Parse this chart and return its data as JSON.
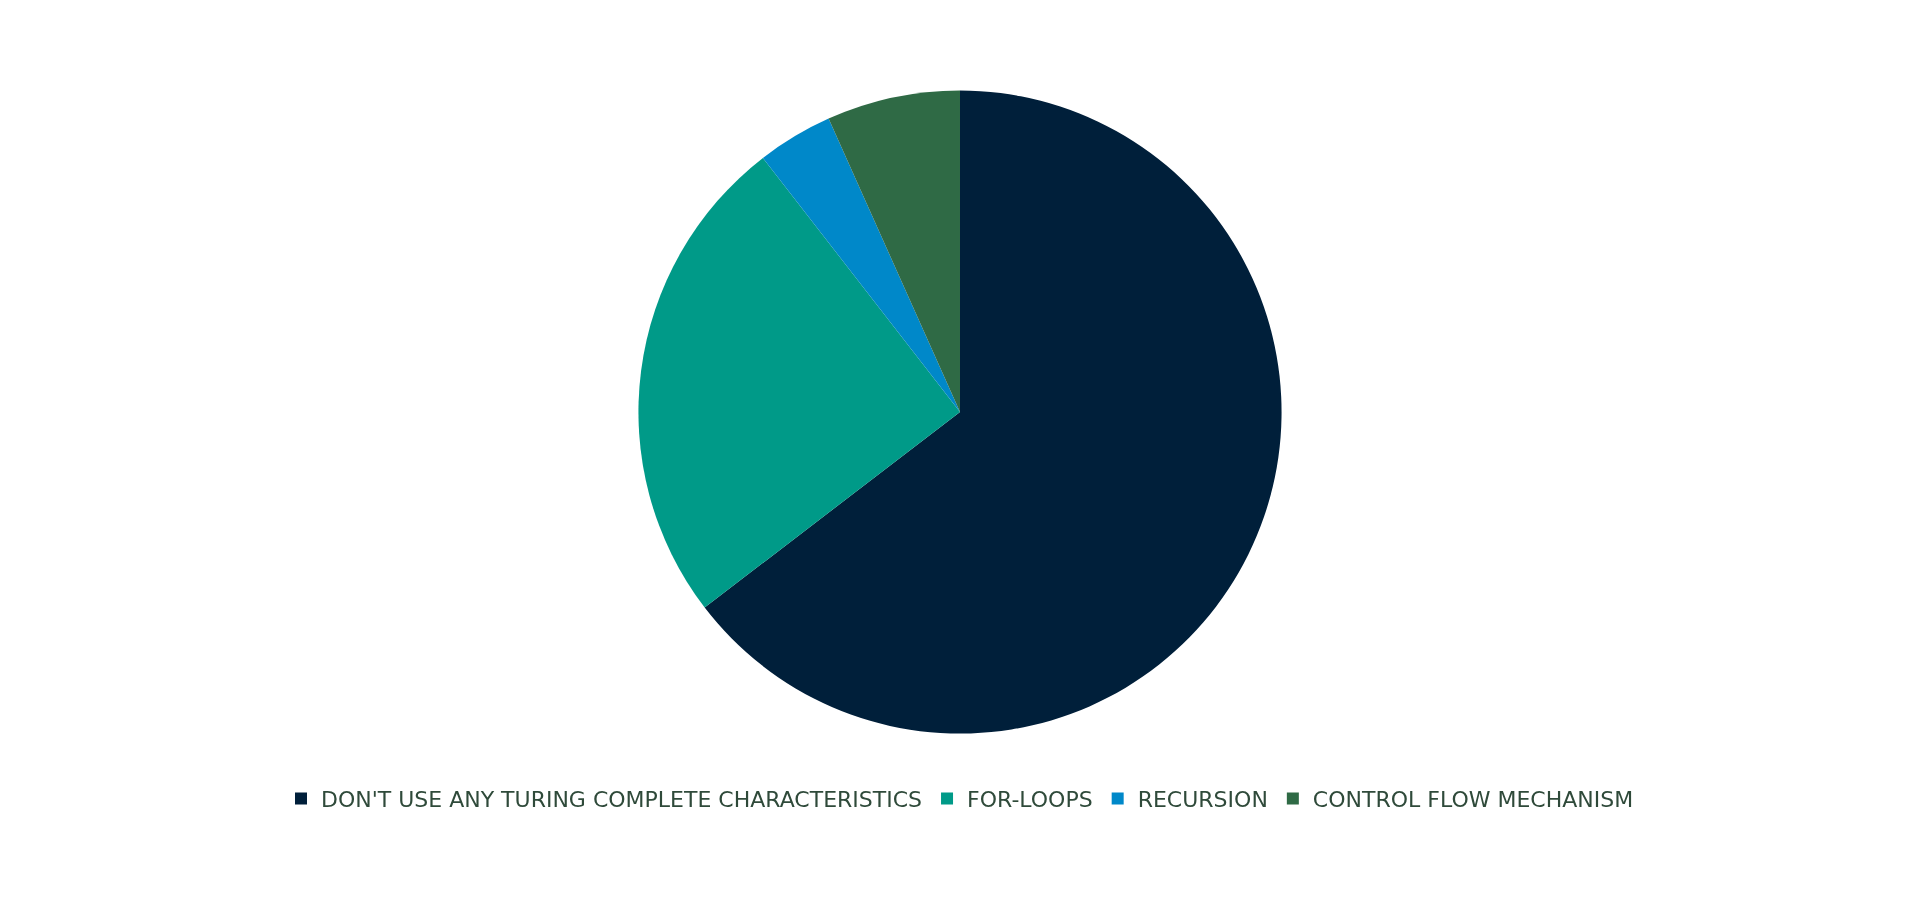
{
  "chart_data": {
    "type": "pie",
    "categories": [
      "DON'T USE ANY TURING COMPLETE CHARACTERISTICS",
      "FOR-LOOPS",
      "RECURSION",
      "CONTROL FLOW MECHANISM"
    ],
    "values": [
      64.6,
      24.9,
      3.8,
      6.7
    ],
    "colors": [
      "#001f3a",
      "#009a88",
      "#0088c9",
      "#2f6a45"
    ],
    "legend": "bottom"
  }
}
